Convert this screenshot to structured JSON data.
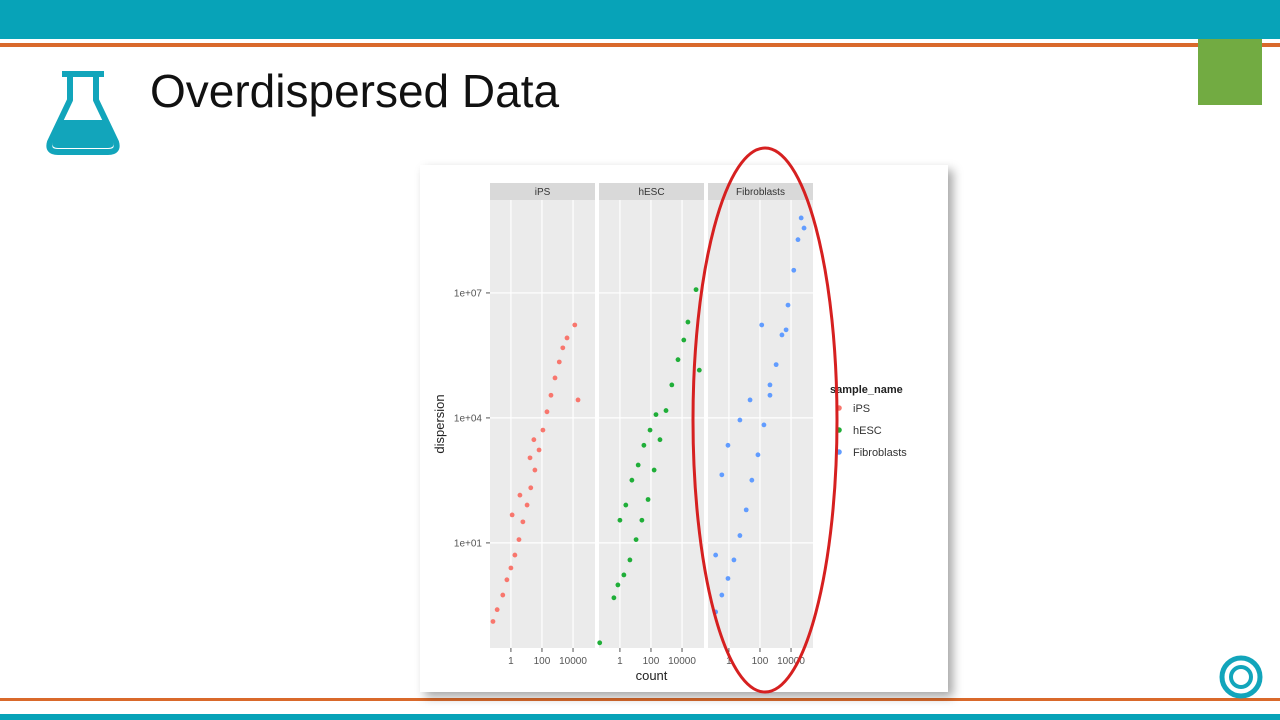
{
  "slide": {
    "title": "Overdispersed Data"
  },
  "chart_data": {
    "type": "scatter",
    "xlabel": "count",
    "ylabel": "dispersion",
    "legend_title": "sample_name",
    "log_x": true,
    "log_y": true,
    "grid": true,
    "xlim": [
      0.045,
      260000
    ],
    "ylim": [
      0.03,
      1700000000
    ],
    "xticks": [
      1,
      100,
      10000
    ],
    "yticks": [
      {
        "value": 10,
        "label": "1e+01"
      },
      {
        "value": 10000,
        "label": "1e+04"
      },
      {
        "value": 10000000,
        "label": "1e+07"
      }
    ],
    "series": [
      {
        "name": "iPS",
        "color": "#f8766d",
        "x": [
          0.07,
          0.13,
          0.3,
          0.55,
          1,
          1.8,
          3.3,
          5.9,
          11,
          19,
          35,
          65,
          115,
          210,
          380,
          690,
          1300,
          2200,
          4100,
          13000,
          21000,
          1.2,
          3.8,
          17,
          30
        ],
        "values": [
          0.13,
          0.25,
          0.56,
          1.3,
          2.5,
          5.1,
          12,
          32,
          81,
          210,
          560,
          1700,
          5100,
          14000,
          35000,
          91000,
          220000,
          480000,
          830000,
          1700000,
          27000,
          47,
          140,
          1100,
          3000
        ]
      },
      {
        "name": "hESC",
        "color": "#1fae38",
        "x": [
          0.05,
          0.41,
          0.74,
          1.8,
          4.4,
          11,
          26,
          65,
          160,
          380,
          930,
          2200,
          5500,
          13000,
          24000,
          80000,
          130000,
          1,
          2.4,
          5.9,
          15,
          35,
          87,
          210
        ],
        "values": [
          0.04,
          0.48,
          0.98,
          1.7,
          3.9,
          12,
          35,
          110,
          560,
          3000,
          15000,
          62000,
          250000,
          740000,
          2000000,
          12000000,
          140000,
          35,
          81,
          320,
          740,
          2200,
          5100,
          12000
        ]
      },
      {
        "name": "Fibroblasts",
        "color": "#619cff",
        "x": [
          0.14,
          0.35,
          0.87,
          2.1,
          5.1,
          13,
          30,
          74,
          180,
          440,
          1100,
          2600,
          6400,
          15000,
          28000,
          69000,
          45000,
          0.14,
          0.35,
          0.87,
          5.1,
          23,
          130,
          440,
          4800
        ],
        "values": [
          0.22,
          0.56,
          1.4,
          3.9,
          15,
          62,
          320,
          1300,
          6800,
          35000,
          190000,
          980000,
          5100000,
          35000000,
          190000000,
          360000000,
          630000000,
          5.1,
          430,
          2200,
          8900,
          27000,
          1700000,
          62000,
          1300000
        ]
      }
    ]
  }
}
